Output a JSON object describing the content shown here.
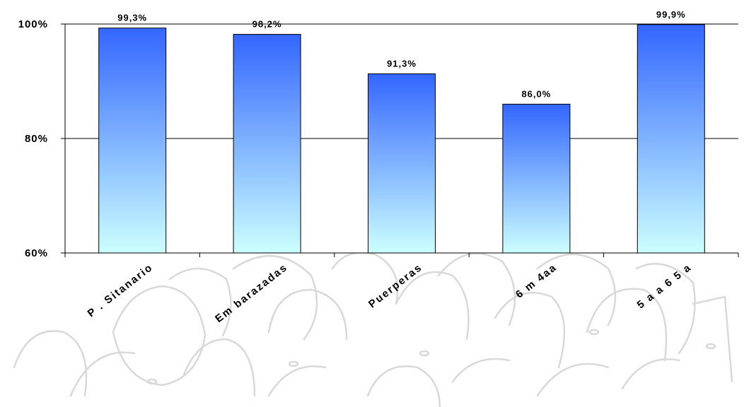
{
  "chart_data": {
    "type": "bar",
    "categories": [
      "P . Sitanario",
      "Em barazadas",
      "Puerperas",
      "6 m 4aa",
      "5 a a 6 5 a"
    ],
    "values": [
      99.3,
      98.2,
      91.3,
      86.0,
      99.9
    ],
    "data_labels": [
      "99,3%",
      "98,2%",
      "91,3%",
      "86,0%",
      "99,9%"
    ],
    "yticks": [
      60,
      80,
      100
    ],
    "ytick_labels": [
      "60%",
      "80%",
      "100%"
    ],
    "ylim": [
      60,
      100
    ],
    "grid": true,
    "bar_gradient": {
      "top": "#3366ff",
      "bottom": "#ccffff"
    },
    "title": "",
    "xlabel": "",
    "ylabel": ""
  },
  "background": {
    "decoration": "people-sketch",
    "color": "#d9d9d9"
  }
}
